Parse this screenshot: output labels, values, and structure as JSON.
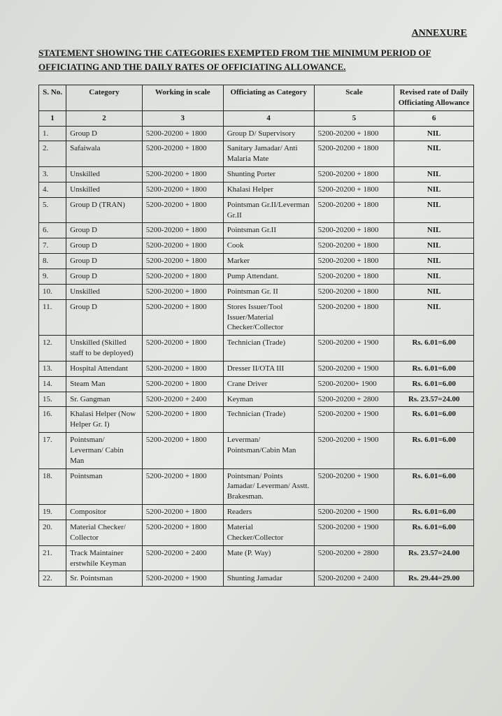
{
  "annexure": "ANNEXURE",
  "title": "STATEMENT SHOWING THE CATEGORIES EXEMPTED FROM THE MINIMUM PERIOD OF OFFICIATING AND THE DAILY RATES OF OFFICIATING ALLOWANCE.",
  "headers": {
    "sno": "S. No.",
    "category": "Category",
    "working": "Working in scale",
    "officiating": "Officiating as Category",
    "scale": "Scale",
    "rate": "Revised rate of Daily Officiating Allowance"
  },
  "num_headers": [
    "1",
    "2",
    "3",
    "4",
    "5",
    "6"
  ],
  "rows": [
    {
      "sno": "1.",
      "cat": "Group D",
      "work": "5200-20200 + 1800",
      "off": "Group D/ Supervisory",
      "scale": "5200-20200 + 1800",
      "rate": "NIL"
    },
    {
      "sno": "2.",
      "cat": "Safaiwala",
      "work": "5200-20200 + 1800",
      "off": "Sanitary Jamadar/ Anti Malaria Mate",
      "scale": "5200-20200 + 1800",
      "rate": "NIL"
    },
    {
      "sno": "3.",
      "cat": "Unskilled",
      "work": "5200-20200 + 1800",
      "off": "Shunting Porter",
      "scale": "5200-20200 + 1800",
      "rate": "NIL"
    },
    {
      "sno": "4.",
      "cat": "Unskilled",
      "work": "5200-20200 + 1800",
      "off": "Khalasi Helper",
      "scale": "5200-20200 + 1800",
      "rate": "NIL"
    },
    {
      "sno": "5.",
      "cat": "Group D (TRAN)",
      "work": "5200-20200 + 1800",
      "off": "Pointsman Gr.II/Leverman Gr.II",
      "scale": "5200-20200 + 1800",
      "rate": "NIL"
    },
    {
      "sno": "6.",
      "cat": "Group D",
      "work": "5200-20200 + 1800",
      "off": "Pointsman Gr.II",
      "scale": "5200-20200 + 1800",
      "rate": "NIL"
    },
    {
      "sno": "7.",
      "cat": "Group D",
      "work": "5200-20200 + 1800",
      "off": "Cook",
      "scale": "5200-20200 + 1800",
      "rate": "NIL"
    },
    {
      "sno": "8.",
      "cat": "Group D",
      "work": "5200-20200 + 1800",
      "off": "Marker",
      "scale": "5200-20200 + 1800",
      "rate": "NIL"
    },
    {
      "sno": "9.",
      "cat": "Group D",
      "work": "5200-20200 + 1800",
      "off": "Pump Attendant.",
      "scale": "5200-20200 + 1800",
      "rate": "NIL"
    },
    {
      "sno": "10.",
      "cat": "Unskilled",
      "work": "5200-20200 + 1800",
      "off": "Pointsman Gr. II",
      "scale": "5200-20200 + 1800",
      "rate": "NIL"
    },
    {
      "sno": "11.",
      "cat": "Group D",
      "work": "5200-20200 + 1800",
      "off": "Stores Issuer/Tool Issuer/Material Checker/Collector",
      "scale": "5200-20200 + 1800",
      "rate": "NIL"
    },
    {
      "sno": "12.",
      "cat": "Unskilled (Skilled staff to be deployed)",
      "work": "5200-20200 + 1800",
      "off": "Technician (Trade)",
      "scale": "5200-20200 + 1900",
      "rate": "Rs. 6.01=6.00"
    },
    {
      "sno": "13.",
      "cat": "Hospital Attendant",
      "work": "5200-20200 + 1800",
      "off": "Dresser II/OTA III",
      "scale": "5200-20200 + 1900",
      "rate": "Rs. 6.01=6.00"
    },
    {
      "sno": "14.",
      "cat": "Steam Man",
      "work": "5200-20200 + 1800",
      "off": "Crane Driver",
      "scale": "5200-20200+ 1900",
      "rate": "Rs. 6.01=6.00"
    },
    {
      "sno": "15.",
      "cat": "Sr. Gangman",
      "work": "5200-20200 + 2400",
      "off": "Keyman",
      "scale": "5200-20200 + 2800",
      "rate": "Rs. 23.57=24.00"
    },
    {
      "sno": "16.",
      "cat": "Khalasi Helper (Now Helper Gr. I)",
      "work": "5200-20200 + 1800",
      "off": "Technician (Trade)",
      "scale": "5200-20200 + 1900",
      "rate": "Rs. 6.01=6.00"
    },
    {
      "sno": "17.",
      "cat": "Pointsman/ Leverman/ Cabin Man",
      "work": "5200-20200 + 1800",
      "off": "Leverman/ Pointsman/Cabin Man",
      "scale": "5200-20200 + 1900",
      "rate": "Rs. 6.01=6.00"
    },
    {
      "sno": "18.",
      "cat": "Pointsman",
      "work": "5200-20200 + 1800",
      "off": "Pointsman/ Points Jamadar/ Leverman/ Asstt. Brakesman.",
      "scale": "5200-20200 + 1900",
      "rate": "Rs. 6.01=6.00"
    },
    {
      "sno": "19.",
      "cat": "Compositor",
      "work": "5200-20200 + 1800",
      "off": "Readers",
      "scale": "5200-20200 + 1900",
      "rate": "Rs. 6.01=6.00"
    },
    {
      "sno": "20.",
      "cat": "Material Checker/ Collector",
      "work": "5200-20200 + 1800",
      "off": "Material Checker/Collector",
      "scale": "5200-20200 + 1900",
      "rate": "Rs. 6.01=6.00"
    },
    {
      "sno": "21.",
      "cat": "Track Maintainer erstwhile Keyman",
      "work": "5200-20200 + 2400",
      "off": "Mate (P. Way)",
      "scale": "5200-20200 + 2800",
      "rate": "Rs. 23.57=24.00"
    },
    {
      "sno": "22.",
      "cat": "Sr. Pointsman",
      "work": "5200-20200 + 1900",
      "off": "Shunting Jamadar",
      "scale": "5200-20200 + 2400",
      "rate": "Rs. 29.44=29.00"
    }
  ]
}
